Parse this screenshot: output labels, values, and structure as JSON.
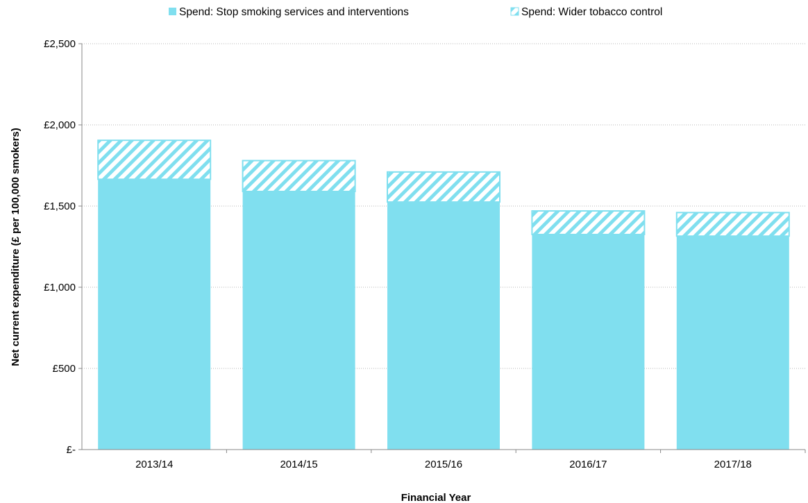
{
  "chart_data": {
    "type": "bar",
    "stacked": true,
    "title": "",
    "xlabel": "Financial Year",
    "ylabel": "Net current expenditure (£ per 100,000 smokers)",
    "categories": [
      "2013/14",
      "2014/15",
      "2015/16",
      "2016/17",
      "2017/18"
    ],
    "series": [
      {
        "name": "Spend: Stop smoking services and interventions",
        "values": [
          1665,
          1590,
          1525,
          1325,
          1315
        ],
        "color": "#80DFEF",
        "pattern": "solid"
      },
      {
        "name": "Spend: Wider tobacco control",
        "values": [
          240,
          190,
          185,
          145,
          145
        ],
        "color": "#80DFEF",
        "pattern": "diagonal-hatch"
      }
    ],
    "ylim": [
      0,
      2500
    ],
    "yticks": [
      0,
      500,
      1000,
      1500,
      2000,
      2500
    ],
    "ytick_labels": [
      "£-",
      "£500",
      "£1,000",
      "£1,500",
      "£2,000",
      "£2,500"
    ],
    "grid": {
      "horizontal": true,
      "style": "dotted"
    },
    "legend_position": "top-center"
  }
}
